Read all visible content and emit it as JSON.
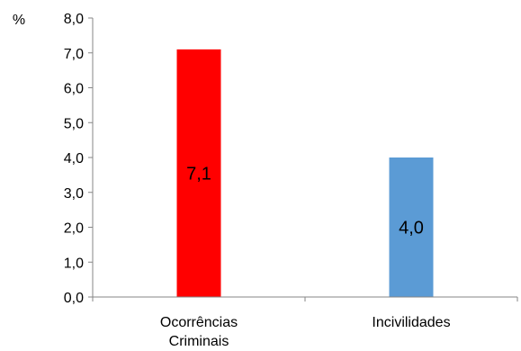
{
  "chart_data": {
    "type": "bar",
    "ylabel": "%",
    "categories": [
      "Ocorrências Criminais",
      "Incivilidades"
    ],
    "category_lines": [
      [
        "Ocorrências",
        "Criminais"
      ],
      [
        "Incivilidades"
      ]
    ],
    "values": [
      7.1,
      4.0
    ],
    "value_labels": [
      "7,1",
      "4,0"
    ],
    "bar_colors": [
      "#ff0000",
      "#5b9bd5"
    ],
    "ylim": [
      0,
      8
    ],
    "yticks": [
      0,
      1,
      2,
      3,
      4,
      5,
      6,
      7,
      8
    ],
    "ytick_labels": [
      "0,0",
      "1,0",
      "2,0",
      "3,0",
      "4,0",
      "5,0",
      "6,0",
      "7,0",
      "8,0"
    ],
    "grid": false,
    "legend": "none"
  }
}
